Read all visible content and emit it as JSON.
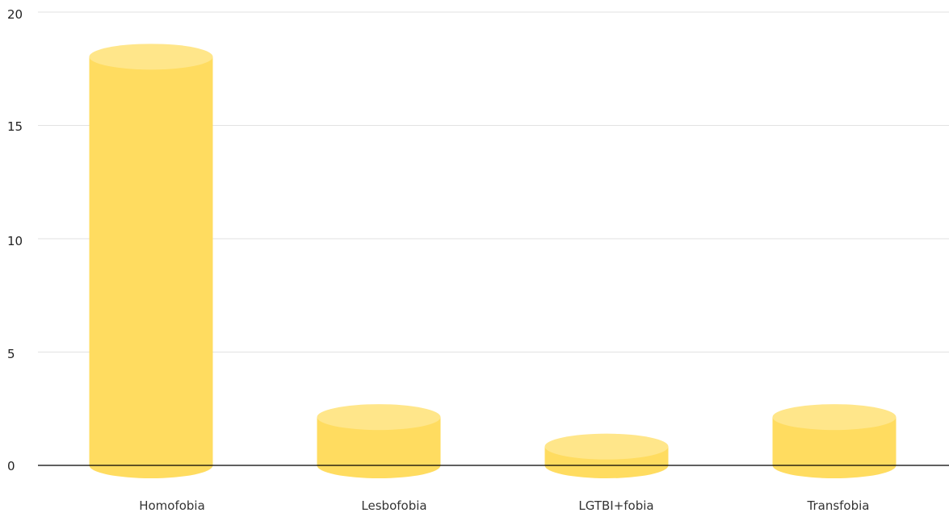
{
  "chart_data": {
    "type": "bar",
    "style": "cylinder",
    "categories": [
      "Homofobia",
      "Lesbofobia",
      "LGTBI+fobia",
      "Transfobia"
    ],
    "values": [
      18.6,
      2.7,
      1.4,
      2.7
    ],
    "ylim": [
      0,
      20
    ],
    "yticks": [
      "0",
      "5",
      "10",
      "15",
      "20"
    ],
    "grid": true,
    "legend": "none",
    "colors": {
      "bar_body": "#FFDC60",
      "bar_top": "#FFE68A",
      "grid": "#E2E2E2",
      "axis": "#000000"
    }
  }
}
